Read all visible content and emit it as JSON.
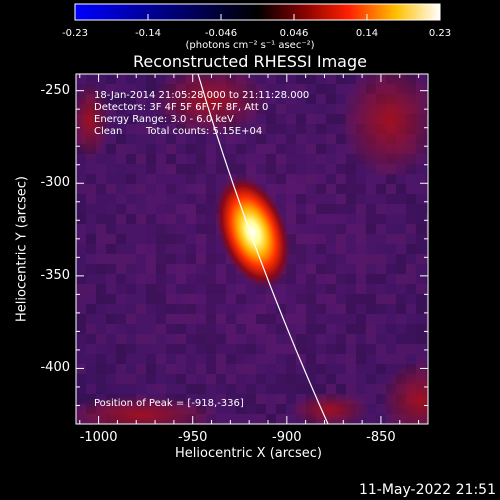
{
  "colorbar": {
    "tick_labels": [
      "-0.23",
      "-0.14",
      "-0.046",
      "0.046",
      "0.14",
      "0.23"
    ],
    "units": "(photons cm⁻² s⁻¹ asec⁻²)"
  },
  "title": "Reconstructed RHESSI Image",
  "annotations": {
    "time_range": "18-Jan-2014 21:05:28.000 to 21:11:28.000",
    "detectors": "Detectors: 3F 4F 5F 6F 7F 8F, Att 0",
    "energy_range": "Energy Range: 3.0 - 6.0 keV",
    "algorithm": "Clean",
    "total_counts": "Total counts: 5.15E+04",
    "peak_position": "Position of Peak = [-918,-336]"
  },
  "axes": {
    "xlabel": "Heliocentric X (arcsec)",
    "ylabel": "Heliocentric Y (arcsec)",
    "x_ticks": [
      "-1000",
      "-950",
      "-900",
      "-850"
    ],
    "y_ticks": [
      "-250",
      "-300",
      "-350",
      "-400"
    ],
    "x_tick_values": [
      -1000,
      -950,
      -900,
      -850
    ],
    "y_tick_values": [
      -250,
      -300,
      -350,
      -400
    ],
    "xlim": [
      -1012,
      -825
    ],
    "ylim": [
      -430,
      -241
    ]
  },
  "peak": {
    "x": -918,
    "y": -336
  },
  "colors": {
    "colormap": "blue-purple-red-yellow-white",
    "limb_line": "#ffffff"
  },
  "footer": {
    "timestamp": "11-May-2022 21:51"
  }
}
